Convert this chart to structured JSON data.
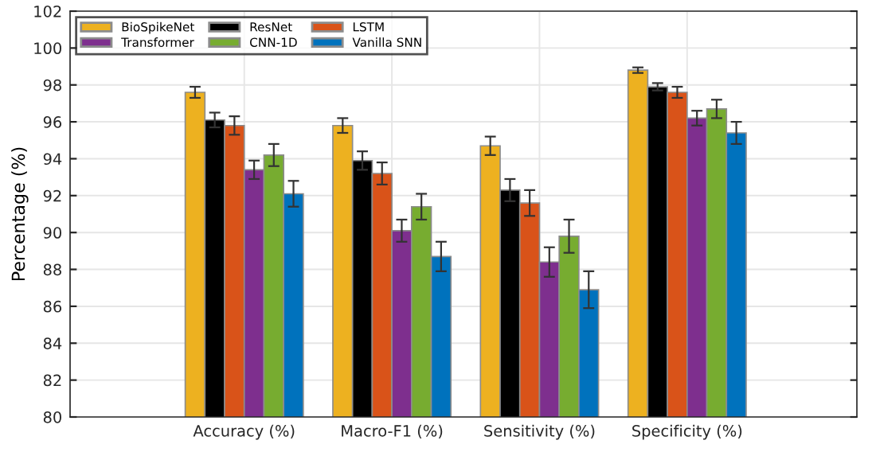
{
  "chart_data": {
    "type": "bar",
    "ylabel": "Percentage (%)",
    "categories": [
      "Accuracy (%)",
      "Macro-F1 (%)",
      "Sensitivity (%)",
      "Specificity (%)"
    ],
    "series": [
      {
        "name": "BioSpikeNet",
        "color": "#edb120",
        "values": [
          97.6,
          95.8,
          94.7,
          98.8
        ],
        "errors": [
          0.3,
          0.4,
          0.5,
          0.15
        ]
      },
      {
        "name": "ResNet",
        "color": "#000000",
        "values": [
          96.1,
          93.9,
          92.3,
          97.9
        ],
        "errors": [
          0.4,
          0.5,
          0.6,
          0.2
        ]
      },
      {
        "name": "LSTM",
        "color": "#d95319",
        "values": [
          95.8,
          93.2,
          91.6,
          97.6
        ],
        "errors": [
          0.5,
          0.6,
          0.7,
          0.3
        ]
      },
      {
        "name": "Transformer",
        "color": "#7e2f8e",
        "values": [
          93.4,
          90.1,
          88.4,
          96.2
        ],
        "errors": [
          0.5,
          0.6,
          0.8,
          0.4
        ]
      },
      {
        "name": "CNN-1D",
        "color": "#77ac30",
        "values": [
          94.2,
          91.4,
          89.8,
          96.7
        ],
        "errors": [
          0.6,
          0.7,
          0.9,
          0.5
        ]
      },
      {
        "name": "Vanilla SNN",
        "color": "#0072bd",
        "values": [
          92.1,
          88.7,
          86.9,
          95.4
        ],
        "errors": [
          0.7,
          0.8,
          1.0,
          0.6
        ]
      }
    ],
    "ylim": [
      80,
      102
    ],
    "yticks": [
      80,
      82,
      84,
      86,
      88,
      90,
      92,
      94,
      96,
      98,
      100,
      102
    ],
    "grid": true,
    "legend": "top left"
  }
}
